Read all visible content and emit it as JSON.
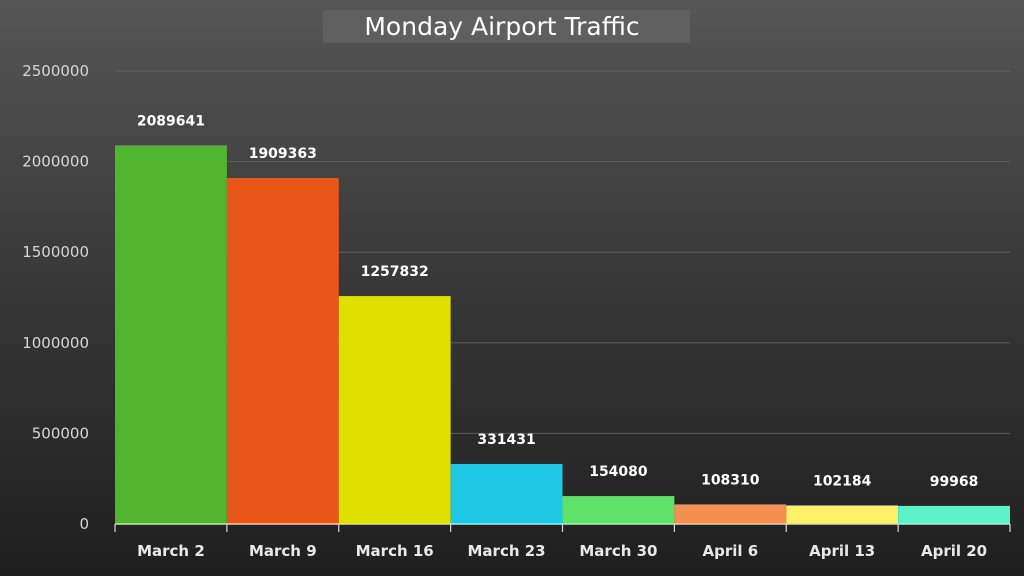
{
  "chart_data": {
    "type": "bar",
    "title": "Monday Airport Traffic",
    "xlabel": "",
    "ylabel": "",
    "ylim": [
      0,
      2500000
    ],
    "yticks": [
      0,
      500000,
      1000000,
      1500000,
      2000000,
      2500000
    ],
    "ytick_labels": [
      "0",
      "500000",
      "1000000",
      "1500000",
      "2000000",
      "2500000"
    ],
    "categories": [
      "March 2",
      "March 9",
      "March 16",
      "March 23",
      "March 30",
      "April 6",
      "April 13",
      "April 20"
    ],
    "values": [
      2089641,
      1909363,
      1257832,
      331431,
      154080,
      108310,
      102184,
      99968
    ],
    "value_labels": [
      "2089641",
      "1909363",
      "1257832",
      "331431",
      "154080",
      "108310",
      "102184",
      "99968"
    ],
    "colors": [
      "#52b52f",
      "#e95619",
      "#dfe000",
      "#1fc8e4",
      "#5ee26a",
      "#f48f52",
      "#fff06a",
      "#5df2c7"
    ],
    "grid": true,
    "legend": "none"
  }
}
